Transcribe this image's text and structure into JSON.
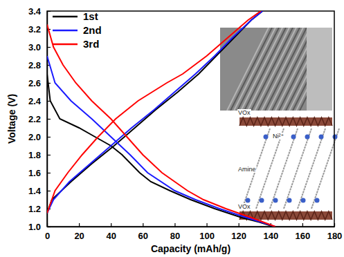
{
  "chart_data": {
    "type": "line",
    "x_label": "Capacity (mAh/g)",
    "y_label": "Voltage (V)",
    "xlim": [
      0,
      180
    ],
    "xticks": [
      0,
      20,
      40,
      60,
      80,
      100,
      120,
      140,
      160,
      180
    ],
    "ylim": [
      1,
      3.4
    ],
    "yticks": [
      {
        "value": 1,
        "label": "1.0"
      },
      1.2,
      1.4,
      1.6,
      1.8,
      {
        "value": 2,
        "label": "2.0"
      },
      2.2,
      2.4,
      2.6,
      2.8,
      {
        "value": 3,
        "label": "3.0"
      },
      3.2,
      3.4
    ],
    "grid": false,
    "legend": "upper left",
    "annotations": [
      "VOx",
      "Ni²⁺",
      "Amine",
      "VOx"
    ],
    "series": [
      {
        "name": "1st",
        "color": "#000000",
        "x": [
          0,
          2,
          8,
          20,
          30,
          40,
          47,
          58,
          65,
          77,
          90,
          105,
          122,
          133,
          142,
          null,
          0,
          3,
          15,
          28,
          42,
          55,
          68,
          82,
          95,
          106,
          117,
          128,
          135
        ],
        "values": [
          2.7,
          2.4,
          2.2,
          2.1,
          2.0,
          1.9,
          1.8,
          1.6,
          1.5,
          1.4,
          1.3,
          1.2,
          1.1,
          1.05,
          1.0,
          null,
          1.15,
          1.3,
          1.5,
          1.7,
          1.9,
          2.1,
          2.3,
          2.5,
          2.7,
          2.9,
          3.1,
          3.3,
          3.4
        ]
      },
      {
        "name": "2nd",
        "color": "#1a1aff",
        "x": [
          0,
          5,
          15,
          28,
          40,
          52,
          63,
          80,
          93,
          108,
          125,
          143,
          null,
          0,
          4,
          14,
          27,
          40,
          53,
          67,
          80,
          93,
          105,
          116,
          128,
          135
        ],
        "values": [
          2.9,
          2.6,
          2.4,
          2.2,
          2.0,
          1.8,
          1.6,
          1.4,
          1.3,
          1.2,
          1.1,
          1.0,
          null,
          1.15,
          1.3,
          1.5,
          1.7,
          1.9,
          2.1,
          2.3,
          2.5,
          2.7,
          2.9,
          3.1,
          3.3,
          3.4
        ]
      },
      {
        "name": "3rd",
        "color": "#ff0000",
        "x": [
          0,
          4,
          10,
          18,
          28,
          40,
          50,
          60,
          72,
          88,
          98,
          112,
          128,
          143,
          null,
          0,
          5,
          13,
          22,
          32,
          43,
          57,
          75,
          85,
          100,
          113,
          126,
          134
        ],
        "values": [
          3.25,
          3.0,
          2.8,
          2.6,
          2.4,
          2.2,
          2.0,
          1.8,
          1.6,
          1.4,
          1.3,
          1.2,
          1.1,
          1.0,
          null,
          1.15,
          1.4,
          1.6,
          1.8,
          2.0,
          2.2,
          2.4,
          2.6,
          2.7,
          2.9,
          3.1,
          3.3,
          3.4
        ]
      }
    ]
  }
}
